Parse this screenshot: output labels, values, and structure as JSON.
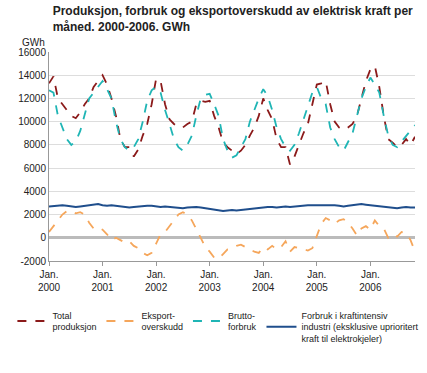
{
  "chart_data": {
    "type": "line",
    "title": "Produksjon, forbruk og eksportoverskudd av elektrisk kraft per\nmåned. 2000-2006. GWh",
    "y_label": "GWh",
    "categories": [
      "Jan. 2000",
      null,
      null,
      null,
      null,
      null,
      null,
      null,
      null,
      null,
      null,
      null,
      "Jan. 2001",
      null,
      null,
      null,
      null,
      null,
      null,
      null,
      null,
      null,
      null,
      null,
      "Jan. 2002",
      null,
      null,
      null,
      null,
      null,
      null,
      null,
      null,
      null,
      null,
      null,
      "Jan. 2003",
      null,
      null,
      null,
      null,
      null,
      null,
      null,
      null,
      null,
      null,
      null,
      "Jan. 2004",
      null,
      null,
      null,
      null,
      null,
      null,
      null,
      null,
      null,
      null,
      null,
      "Jan. 2005",
      null,
      null,
      null,
      null,
      null,
      null,
      null,
      null,
      null,
      null,
      null,
      "Jan. 2006",
      null,
      null,
      null,
      null,
      null,
      null,
      null,
      null,
      null,
      null
    ],
    "series": [
      {
        "name": "Total\nproduksjon",
        "color": "#8b1a1a",
        "line_style": "dash",
        "values": [
          13300,
          13900,
          12000,
          11500,
          11000,
          10500,
          10300,
          10800,
          11500,
          12000,
          13000,
          13500,
          14000,
          13200,
          12000,
          10500,
          8500,
          7800,
          7800,
          7000,
          7600,
          8800,
          9800,
          11500,
          13700,
          13500,
          11500,
          10200,
          9800,
          9500,
          9500,
          9800,
          10000,
          11500,
          11800,
          11700,
          11800,
          10500,
          9500,
          8200,
          7800,
          7500,
          7200,
          7500,
          8000,
          8800,
          9500,
          10500,
          12000,
          11000,
          10200,
          8500,
          7800,
          7800,
          6300,
          7000,
          8000,
          9000,
          9800,
          11500,
          13200,
          13300,
          13500,
          11500,
          10000,
          9500,
          9300,
          9500,
          9800,
          10500,
          12000,
          13500,
          14500,
          14800,
          13000,
          10500,
          8500,
          8200,
          7800,
          8000,
          8500,
          8000,
          8700
        ]
      },
      {
        "name": "Eksport-\noverskudd",
        "color": "#f5a65b",
        "line_style": "dash",
        "values": [
          500,
          1000,
          1500,
          2000,
          2300,
          2300,
          2100,
          2200,
          2000,
          1300,
          800,
          900,
          700,
          300,
          -200,
          0,
          -200,
          -400,
          -300,
          -700,
          -900,
          -1300,
          -1500,
          -1300,
          -500,
          300,
          500,
          1000,
          1500,
          2000,
          2200,
          2000,
          1500,
          800,
          0,
          -800,
          -1200,
          -1700,
          -1800,
          -1400,
          -1000,
          -900,
          -700,
          -600,
          -800,
          -1000,
          -1200,
          -1300,
          -800,
          -1000,
          -700,
          -1000,
          -800,
          -300,
          -1200,
          -800,
          -900,
          -1000,
          -1100,
          -900,
          100,
          1200,
          1700,
          1500,
          1200,
          1500,
          1600,
          1300,
          800,
          200,
          800,
          1000,
          700,
          1500,
          1000,
          800,
          0,
          300,
          100,
          500,
          400,
          -200,
          -1200
        ]
      },
      {
        "name": "Brutto-\nforbruk",
        "color": "#1fb5b5",
        "line_style": "dash",
        "values": [
          12700,
          12500,
          10500,
          9500,
          8500,
          8000,
          8300,
          9200,
          10500,
          12000,
          12500,
          13000,
          13500,
          12800,
          12000,
          10000,
          8500,
          7800,
          7500,
          7800,
          8500,
          10000,
          11800,
          12700,
          13000,
          12500,
          11000,
          9800,
          8500,
          7800,
          7500,
          8000,
          8800,
          10500,
          12000,
          12300,
          12400,
          11500,
          10500,
          8500,
          7500,
          6900,
          7100,
          7800,
          8500,
          10000,
          11000,
          12000,
          12800,
          12200,
          11000,
          9500,
          8500,
          7800,
          7500,
          8000,
          9000,
          10200,
          11500,
          12500,
          13000,
          12000,
          11500,
          9500,
          8500,
          7800,
          7500,
          8200,
          9000,
          10500,
          12000,
          13000,
          13800,
          13200,
          12500,
          10500,
          8800,
          8000,
          7800,
          8300,
          8800,
          9300,
          9700
        ]
      },
      {
        "name": "Forbruk i kraftintensiv\nindustri (eksklusive uprioritert\nkraft til elektrokjeler)",
        "color": "#1f4e8c",
        "line_style": "solid",
        "values": [
          2700,
          2750,
          2800,
          2800,
          2750,
          2700,
          2650,
          2700,
          2750,
          2800,
          2800,
          2900,
          2800,
          2750,
          2800,
          2750,
          2700,
          2650,
          2600,
          2650,
          2700,
          2700,
          2750,
          2750,
          2700,
          2650,
          2700,
          2650,
          2600,
          2600,
          2550,
          2600,
          2650,
          2650,
          2600,
          2550,
          2450,
          2400,
          2350,
          2300,
          2350,
          2400,
          2350,
          2400,
          2450,
          2500,
          2550,
          2600,
          2600,
          2650,
          2650,
          2600,
          2650,
          2700,
          2650,
          2700,
          2750,
          2750,
          2800,
          2800,
          2800,
          2850,
          2800,
          2850,
          2800,
          2750,
          2700,
          2750,
          2800,
          2850,
          2900,
          2850,
          2800,
          2750,
          2700,
          2650,
          2600,
          2600,
          2550,
          2600,
          2650,
          2600,
          2600
        ]
      }
    ],
    "ylim": [
      -2000,
      16000
    ],
    "yticks": [
      -2000,
      0,
      2000,
      4000,
      6000,
      8000,
      10000,
      12000,
      14000,
      16000
    ],
    "grid": true,
    "legend": "bottom"
  }
}
